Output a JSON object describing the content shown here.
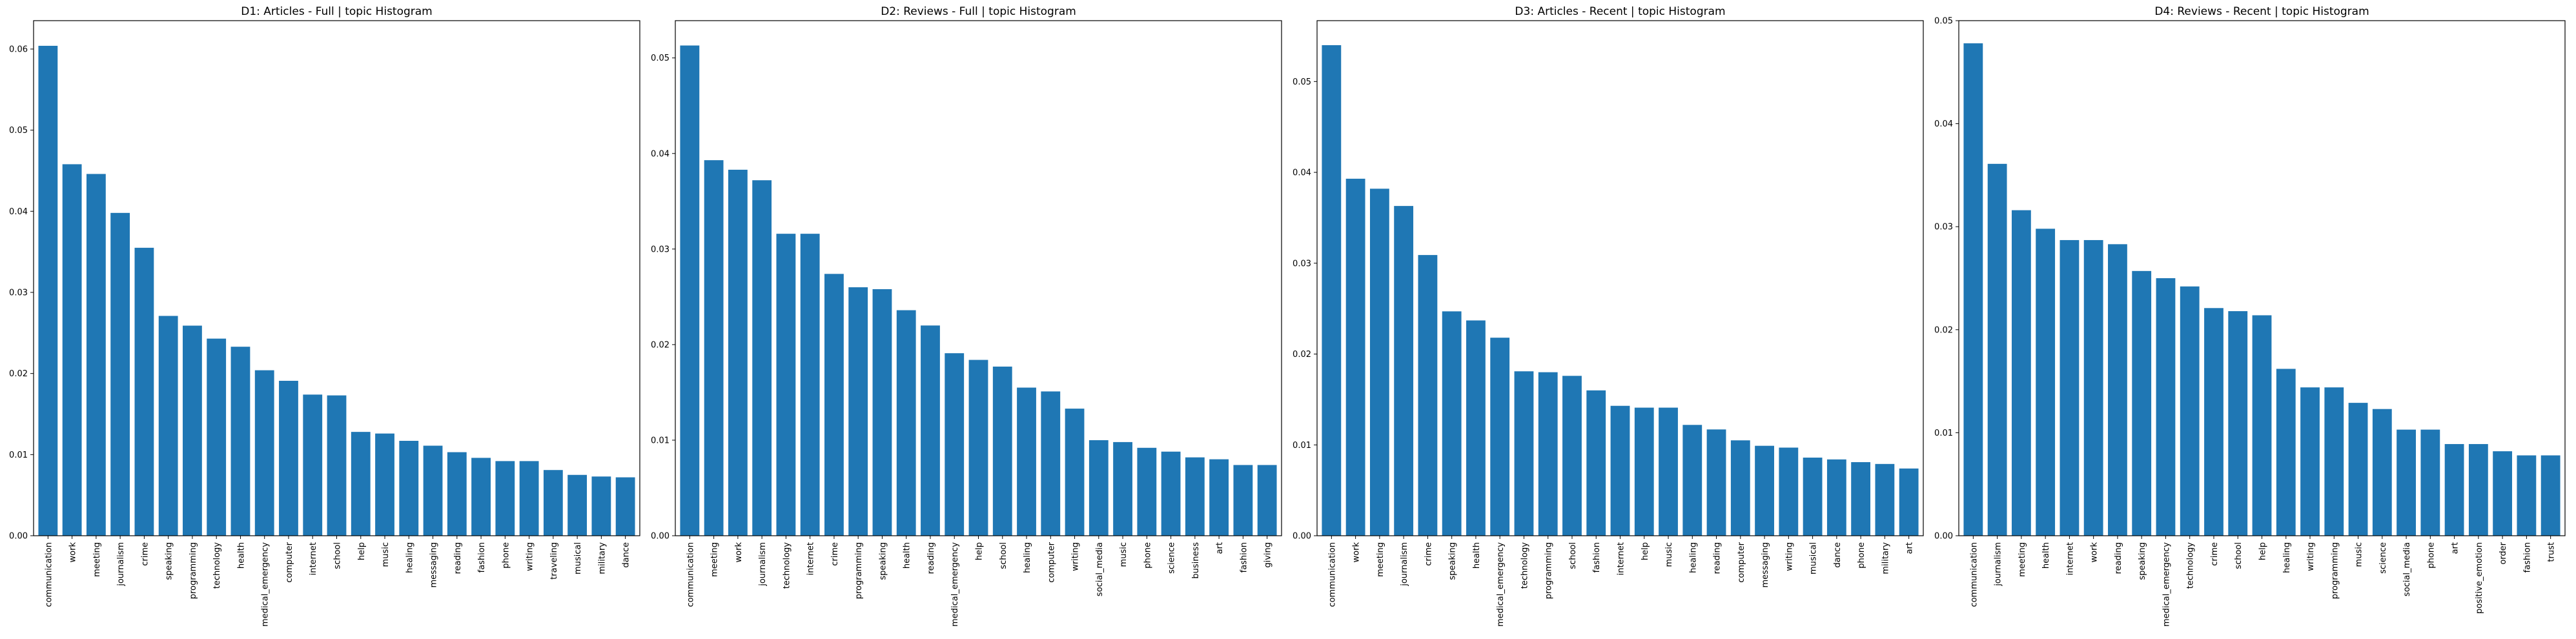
{
  "chart_data": [
    {
      "type": "bar",
      "title": "D1: Articles - Full | topic Histogram",
      "xlabel": "",
      "ylabel": "",
      "ylim": [
        0,
        0.0635
      ],
      "yticks": [
        "0.00",
        "0.01",
        "0.02",
        "0.03",
        "0.04",
        "0.05",
        "0.06"
      ],
      "ytick_values": [
        0,
        0.01,
        0.02,
        0.03,
        0.04,
        0.05,
        0.06
      ],
      "grid": false,
      "color": "#1f77b4",
      "categories": [
        "communication",
        "work",
        "meeting",
        "journalism",
        "crime",
        "speaking",
        "programming",
        "technology",
        "health",
        "medical_emergency",
        "computer",
        "internet",
        "school",
        "help",
        "music",
        "healing",
        "messaging",
        "reading",
        "fashion",
        "phone",
        "writing",
        "traveling",
        "musical",
        "military",
        "dance"
      ],
      "values": [
        0.0604,
        0.0458,
        0.0446,
        0.0398,
        0.0355,
        0.0271,
        0.0259,
        0.0243,
        0.0233,
        0.0204,
        0.0191,
        0.0174,
        0.0173,
        0.0128,
        0.0126,
        0.0117,
        0.0111,
        0.0103,
        0.0096,
        0.0092,
        0.0092,
        0.0081,
        0.0075,
        0.0073,
        0.0072
      ]
    },
    {
      "type": "bar",
      "title": "D2: Reviews - Full | topic Histogram",
      "xlabel": "",
      "ylabel": "",
      "ylim": [
        0,
        0.0539
      ],
      "yticks": [
        "0.00",
        "0.01",
        "0.02",
        "0.03",
        "0.04",
        "0.05"
      ],
      "ytick_values": [
        0,
        0.01,
        0.02,
        0.03,
        0.04,
        0.05
      ],
      "grid": false,
      "color": "#1f77b4",
      "categories": [
        "communication",
        "meeting",
        "work",
        "journalism",
        "technology",
        "internet",
        "crime",
        "programming",
        "speaking",
        "health",
        "reading",
        "medical_emergency",
        "help",
        "school",
        "healing",
        "computer",
        "writing",
        "social_media",
        "music",
        "phone",
        "science",
        "business",
        "art",
        "fashion",
        "giving"
      ],
      "values": [
        0.0513,
        0.0393,
        0.0383,
        0.0372,
        0.0316,
        0.0316,
        0.0274,
        0.026,
        0.0258,
        0.0236,
        0.022,
        0.0191,
        0.0184,
        0.0177,
        0.0155,
        0.0151,
        0.0133,
        0.01,
        0.0098,
        0.0092,
        0.0088,
        0.0082,
        0.008,
        0.0074,
        0.0074
      ]
    },
    {
      "type": "bar",
      "title": "D3: Articles - Recent | topic Histogram",
      "xlabel": "",
      "ylabel": "",
      "ylim": [
        0,
        0.0567
      ],
      "yticks": [
        "0.00",
        "0.01",
        "0.02",
        "0.03",
        "0.04",
        "0.05"
      ],
      "ytick_values": [
        0,
        0.01,
        0.02,
        0.03,
        0.04,
        0.05
      ],
      "grid": false,
      "color": "#1f77b4",
      "categories": [
        "communication",
        "work",
        "meeting",
        "journalism",
        "crime",
        "speaking",
        "health",
        "medical_emergency",
        "technology",
        "programming",
        "school",
        "fashion",
        "internet",
        "help",
        "music",
        "healing",
        "reading",
        "computer",
        "messaging",
        "writing",
        "musical",
        "dance",
        "phone",
        "military",
        "art"
      ],
      "values": [
        0.054,
        0.0393,
        0.0382,
        0.0363,
        0.0309,
        0.0247,
        0.0237,
        0.0218,
        0.0181,
        0.018,
        0.0176,
        0.016,
        0.0143,
        0.0141,
        0.0141,
        0.0122,
        0.0117,
        0.0105,
        0.0099,
        0.0097,
        0.0086,
        0.0084,
        0.0081,
        0.0079,
        0.0074
      ]
    },
    {
      "type": "bar",
      "title": "D4: Reviews - Recent | topic Histogram",
      "xlabel": "",
      "ylabel": "",
      "ylim": [
        0,
        0.05
      ],
      "yticks": [
        "0.00",
        "0.01",
        "0.02",
        "0.03",
        "0.04",
        "0.05"
      ],
      "ytick_values": [
        0,
        0.01,
        0.02,
        0.03,
        0.04,
        0.05
      ],
      "grid": false,
      "color": "#1f77b4",
      "categories": [
        "communication",
        "journalism",
        "meeting",
        "health",
        "internet",
        "work",
        "reading",
        "speaking",
        "medical_emergency",
        "technology",
        "crime",
        "school",
        "help",
        "healing",
        "writing",
        "programming",
        "music",
        "science",
        "social_media",
        "phone",
        "art",
        "positive_emotion",
        "order",
        "fashion",
        "trust"
      ],
      "values": [
        0.0478,
        0.0361,
        0.0316,
        0.0298,
        0.0287,
        0.0287,
        0.0283,
        0.0257,
        0.025,
        0.0242,
        0.0221,
        0.0218,
        0.0214,
        0.0162,
        0.0144,
        0.0144,
        0.0129,
        0.0123,
        0.0103,
        0.0103,
        0.0089,
        0.0089,
        0.0082,
        0.0078,
        0.0078
      ]
    }
  ]
}
